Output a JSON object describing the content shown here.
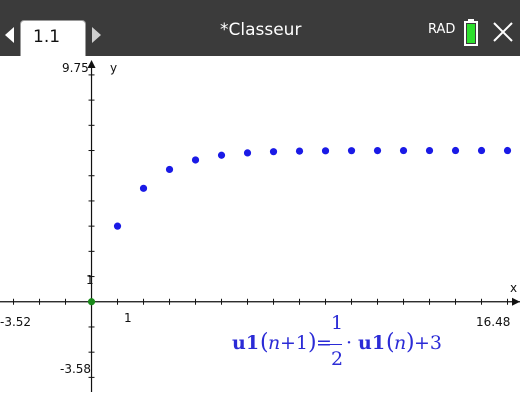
{
  "header": {
    "tab_label": "1.1",
    "document_title": "*Classeur",
    "angle_mode": "RAD"
  },
  "graph": {
    "y_max_label": "9.75",
    "y_axis_label": "y",
    "x_axis_label": "x",
    "x_min_label": "-3.52",
    "x_max_label": "16.48",
    "y_min_label": "-3.58",
    "x_tick_label": "1",
    "y_tick_label": "1",
    "point_color": "#1a1ae6",
    "origin_color": "#1a8a1a"
  },
  "formula": {
    "lhs_name": "u1",
    "lhs_arg_n": "n",
    "lhs_arg_rest": "+1",
    "equals": "=",
    "frac_num": "1",
    "frac_den": "2",
    "dot": "·",
    "rhs_name": "u1",
    "rhs_arg_n": "n",
    "plus_term": "+3"
  },
  "chart_data": {
    "type": "scatter",
    "title": "",
    "xlabel": "x",
    "ylabel": "y",
    "xlim": [
      -3.52,
      16.48
    ],
    "ylim": [
      -3.58,
      9.75
    ],
    "series": [
      {
        "x": [
          0,
          1,
          2,
          3,
          4,
          5,
          6,
          7,
          8,
          9,
          10,
          11,
          12,
          13,
          14,
          15,
          16
        ],
        "values": [
          0,
          3,
          4.5,
          5.25,
          5.625,
          5.8125,
          5.906,
          5.953,
          5.977,
          5.988,
          5.994,
          5.997,
          5.999,
          5.999,
          6.0,
          6.0,
          6.0
        ]
      }
    ]
  }
}
